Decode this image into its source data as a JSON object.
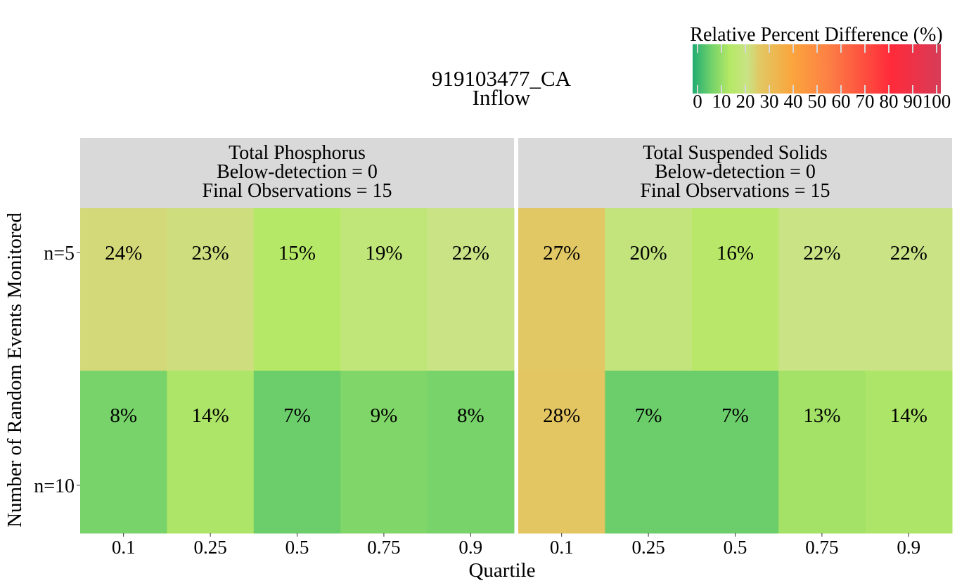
{
  "chart_data": {
    "type": "heatmap",
    "title": "919103477_CA",
    "subtitle": "Inflow",
    "xlabel": "Quartile",
    "ylabel": "Number of Random Events Monitored",
    "x_categories": [
      "0.1",
      "0.25",
      "0.5",
      "0.75",
      "0.9"
    ],
    "y_categories": [
      "n=5",
      "n=10"
    ],
    "value_suffix": "%",
    "legend": {
      "title": "Relative Percent Difference (%)",
      "min": 0,
      "max": 100,
      "ticks": [
        "0",
        "10",
        "20",
        "30",
        "40",
        "50",
        "60",
        "70",
        "80",
        "90",
        "100"
      ],
      "placement": "top-right",
      "color_stops": [
        {
          "value": 0,
          "color": "#1fad73"
        },
        {
          "value": 8,
          "color": "#77d36a"
        },
        {
          "value": 15,
          "color": "#b5e866"
        },
        {
          "value": 22,
          "color": "#c9e385"
        },
        {
          "value": 27,
          "color": "#e1c864"
        },
        {
          "value": 40,
          "color": "#fba53d"
        },
        {
          "value": 55,
          "color": "#fc7f45"
        },
        {
          "value": 80,
          "color": "#ff2a3a"
        },
        {
          "value": 100,
          "color": "#d73c58"
        }
      ]
    },
    "panels": [
      {
        "strip": [
          "Total Phosphorus",
          "Below-detection = 0",
          "Final Observations = 15"
        ],
        "values": [
          [
            24,
            23,
            15,
            19,
            22
          ],
          [
            8,
            14,
            7,
            9,
            8
          ]
        ],
        "labels": [
          [
            "24%",
            "23%",
            "15%",
            "19%",
            "22%"
          ],
          [
            "8%",
            "14%",
            "7%",
            "9%",
            "8%"
          ]
        ]
      },
      {
        "strip": [
          "Total Suspended Solids",
          "Below-detection = 0",
          "Final Observations = 15"
        ],
        "values": [
          [
            27,
            20,
            16,
            22,
            22
          ],
          [
            28,
            7,
            7,
            13,
            14
          ]
        ],
        "labels": [
          [
            "27%",
            "20%",
            "16%",
            "22%",
            "22%"
          ],
          [
            "28%",
            "7%",
            "7%",
            "13%",
            "14%"
          ]
        ]
      }
    ]
  }
}
